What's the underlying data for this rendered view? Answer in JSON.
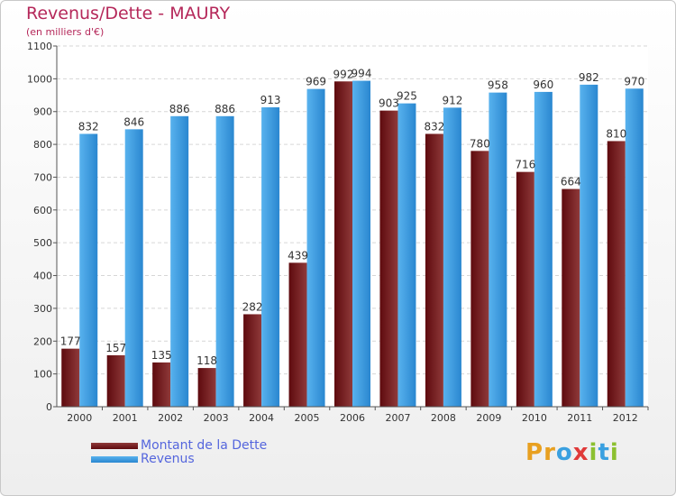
{
  "header": {
    "title": "Revenus/Dette - MAURY",
    "subtitle": "(en milliers d'€)"
  },
  "colors": {
    "title": "#b5285a",
    "dette_dark": "#5e0a0e",
    "dette_light": "#8f3a3a",
    "revenus_dark": "#2a87d0",
    "revenus_light": "#58b2ee",
    "legend_text": "#5566dd"
  },
  "chart_data": {
    "type": "bar",
    "categories": [
      "2000",
      "2001",
      "2002",
      "2003",
      "2004",
      "2005",
      "2006",
      "2007",
      "2008",
      "2009",
      "2010",
      "2011",
      "2012"
    ],
    "series": [
      {
        "name": "Montant de la Dette",
        "values": [
          177,
          157,
          135,
          118,
          282,
          439,
          992,
          903,
          832,
          780,
          716,
          664,
          810
        ]
      },
      {
        "name": "Revenus",
        "values": [
          832,
          846,
          886,
          886,
          913,
          969,
          994,
          925,
          912,
          958,
          960,
          982,
          970
        ]
      }
    ],
    "yticks": [
      0,
      100,
      200,
      300,
      400,
      500,
      600,
      700,
      800,
      900,
      1000,
      1100
    ],
    "ylim": [
      0,
      1100
    ],
    "grid": true,
    "legend_placement": "bottom-left"
  },
  "legend": {
    "items": [
      {
        "label": "Montant de la Dette",
        "swatch": "dette"
      },
      {
        "label": "Revenus",
        "swatch": "revenus"
      }
    ]
  },
  "logo": {
    "text": "Proxiti",
    "letters": [
      {
        "ch": "P",
        "color": "#e8a020"
      },
      {
        "ch": "r",
        "color": "#e8a020"
      },
      {
        "ch": "o",
        "color": "#3aa0e0"
      },
      {
        "ch": "x",
        "color": "#e03a3a"
      },
      {
        "ch": "i",
        "color": "#8cc030"
      },
      {
        "ch": "t",
        "color": "#3aa0e0"
      },
      {
        "ch": "i",
        "color": "#8cc030"
      }
    ]
  }
}
